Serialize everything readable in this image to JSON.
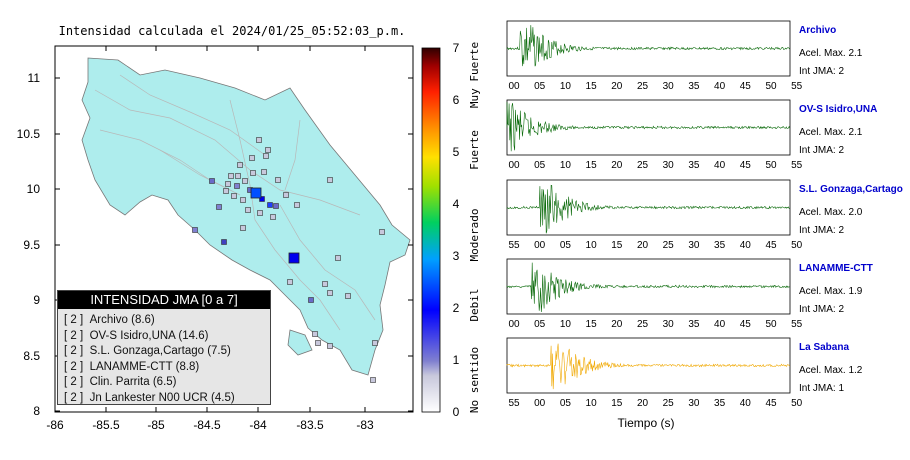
{
  "map": {
    "title": "Intensidad calculada el 2024/01/25_05:52:03_p.m.",
    "y_ticks": [
      "11",
      "10.5",
      "10",
      "9.5",
      "9",
      "8.5",
      "8"
    ],
    "x_ticks": [
      "-86",
      "-85.5",
      "-85",
      "-84.5",
      "-84",
      "-83.5",
      "-83"
    ],
    "land_color": "#aeeded"
  },
  "legend": {
    "title": "INTENSIDAD JMA [0 a 7]",
    "items": [
      {
        "intensity": "[ 2 ]",
        "station": "Archivo (8.6)"
      },
      {
        "intensity": "[ 2 ]",
        "station": "OV-S Isidro,UNA (14.6)"
      },
      {
        "intensity": "[ 2 ]",
        "station": "S.L. Gonzaga,Cartago (7.5)"
      },
      {
        "intensity": "[ 2 ]",
        "station": "LANAMME-CTT (8.8)"
      },
      {
        "intensity": "[ 2 ]",
        "station": "Clin. Parrita (6.5)"
      },
      {
        "intensity": "[ 2 ]",
        "station": "Jn Lankester N00 UCR (4.5)"
      }
    ]
  },
  "colorbar": {
    "ticks": [
      "7",
      "6",
      "5",
      "4",
      "3",
      "2",
      "1",
      "0"
    ],
    "categories": [
      "Muy Fuerte",
      "Fuerte",
      "Moderado",
      "Debil",
      "No sentido"
    ]
  },
  "chart_data": [
    {
      "type": "line",
      "name": "Archivo",
      "x_ticks": [
        "00",
        "05",
        "10",
        "15",
        "20",
        "25",
        "30",
        "35",
        "40",
        "45",
        "50",
        "55"
      ],
      "acel_label": "Acel. Max. 2.1",
      "int_label": "Int JMA: 2",
      "color": "#0a6a0a"
    },
    {
      "type": "line",
      "name": "OV-S Isidro,UNA",
      "x_ticks": [
        "00",
        "05",
        "10",
        "15",
        "20",
        "25",
        "30",
        "35",
        "40",
        "45",
        "50",
        "55"
      ],
      "acel_label": "Acel. Max. 2.1",
      "int_label": "Int JMA: 2",
      "color": "#0a6a0a"
    },
    {
      "type": "line",
      "name": "S.L. Gonzaga,Cartago",
      "x_ticks": [
        "55",
        "00",
        "05",
        "10",
        "15",
        "20",
        "25",
        "30",
        "35",
        "40",
        "45",
        "50"
      ],
      "acel_label": "Acel. Max. 2.0",
      "int_label": "Int JMA: 2",
      "color": "#0a6a0a"
    },
    {
      "type": "line",
      "name": "LANAMME-CTT",
      "x_ticks": [
        "00",
        "05",
        "10",
        "15",
        "20",
        "25",
        "30",
        "35",
        "40",
        "45",
        "50",
        "55"
      ],
      "acel_label": "Acel. Max. 1.9",
      "int_label": "Int JMA: 2",
      "color": "#0a6a0a"
    },
    {
      "type": "line",
      "name": "La Sabana",
      "x_ticks": [
        "55",
        "00",
        "05",
        "10",
        "15",
        "20",
        "25",
        "30",
        "35",
        "40",
        "45",
        "50"
      ],
      "acel_label": "Acel. Max. 1.2",
      "int_label": "Int JMA: 1",
      "color": "#f0a800"
    }
  ],
  "xlabel": "Tiempo (s)"
}
